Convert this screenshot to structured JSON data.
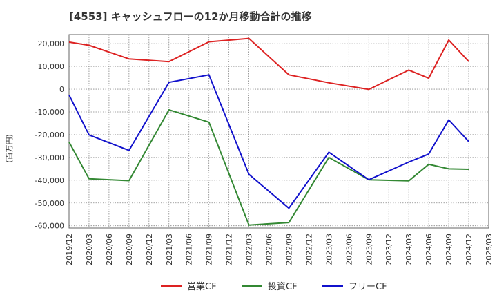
{
  "chart_data": {
    "type": "line",
    "title": "[4553]  キャッシュフローの12か月移動合計の推移",
    "ylabel": "(百万円)",
    "xlabel": "",
    "ylim": [
      -61000,
      24000
    ],
    "yticks": [
      20000,
      10000,
      0,
      -10000,
      -20000,
      -30000,
      -40000,
      -50000,
      -60000
    ],
    "ytick_labels": [
      "20,000",
      "10,000",
      "0",
      "-10,000",
      "-20,000",
      "-30,000",
      "-40,000",
      "-50,000",
      "-60,000"
    ],
    "x_tick_labels": [
      "2019/12",
      "2020/03",
      "2020/06",
      "2020/09",
      "2020/12",
      "2021/03",
      "2021/06",
      "2021/09",
      "2021/12",
      "2022/03",
      "2022/06",
      "2022/09",
      "2022/12",
      "2023/03",
      "2023/06",
      "2023/09",
      "2023/12",
      "2024/03",
      "2024/06",
      "2024/09",
      "2024/12",
      "2025/03"
    ],
    "grid": true,
    "legend_position": "bottom",
    "series": [
      {
        "name": "営業CF",
        "color": "#dd2222",
        "x": [
          "2019/12",
          "2020/03",
          "2020/09",
          "2021/03",
          "2021/09",
          "2022/03",
          "2022/09",
          "2023/03",
          "2023/09",
          "2024/03",
          "2024/06",
          "2024/09",
          "2024/12"
        ],
        "values": [
          20700,
          19300,
          13300,
          12100,
          20800,
          22300,
          6300,
          2800,
          -100,
          8400,
          4800,
          21600,
          12200
        ]
      },
      {
        "name": "投資CF",
        "color": "#338833",
        "x": [
          "2019/12",
          "2020/03",
          "2020/09",
          "2021/03",
          "2021/09",
          "2022/03",
          "2022/09",
          "2023/03",
          "2023/09",
          "2024/03",
          "2024/06",
          "2024/09",
          "2024/12"
        ],
        "values": [
          -23200,
          -39400,
          -40200,
          -9100,
          -14500,
          -59700,
          -58600,
          -30000,
          -39800,
          -40300,
          -33000,
          -35000,
          -35200
        ]
      },
      {
        "name": "フリーCF",
        "color": "#1111cc",
        "x": [
          "2019/12",
          "2020/03",
          "2020/09",
          "2021/03",
          "2021/09",
          "2022/03",
          "2022/09",
          "2023/03",
          "2023/09",
          "2024/03",
          "2024/06",
          "2024/09",
          "2024/12"
        ],
        "values": [
          -2500,
          -20100,
          -26900,
          3000,
          6300,
          -37400,
          -52300,
          -27700,
          -39800,
          -32000,
          -28500,
          -13500,
          -23000
        ]
      }
    ]
  }
}
